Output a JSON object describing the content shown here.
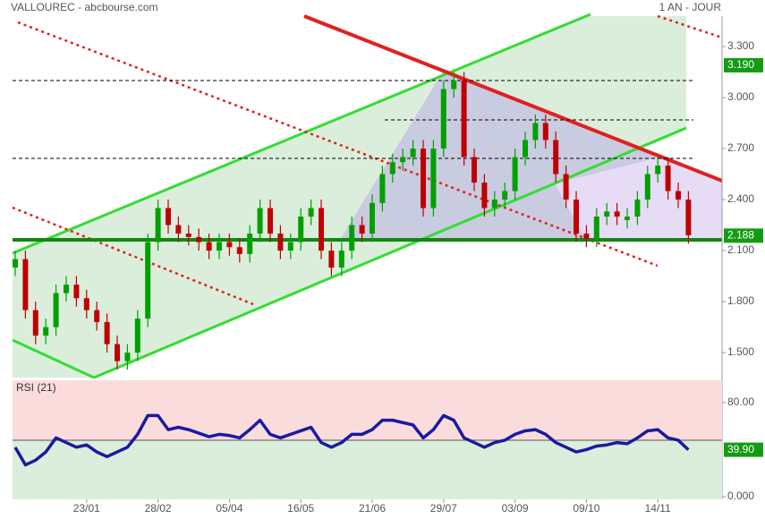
{
  "header": {
    "title": "VALLOUREC - abcbourse.com",
    "period": "1 AN - JOUR"
  },
  "chart_data": [
    {
      "type": "candlestick",
      "up_color": "#00a000",
      "down_color": "#c00000",
      "categories": [
        null,
        null,
        null,
        null,
        null,
        null,
        null,
        "23/01",
        null,
        null,
        null,
        null,
        null,
        null,
        "28/02",
        null,
        null,
        null,
        null,
        null,
        null,
        "05/04",
        null,
        null,
        null,
        null,
        null,
        null,
        "16/05",
        null,
        null,
        null,
        null,
        null,
        null,
        "21/06",
        null,
        null,
        null,
        null,
        null,
        null,
        "29/07",
        null,
        null,
        null,
        null,
        null,
        null,
        "03/09",
        null,
        null,
        null,
        null,
        null,
        null,
        "09/10",
        null,
        null,
        null,
        null,
        null,
        null,
        "14/11",
        null,
        null,
        null
      ],
      "open": [
        2.0,
        2.05,
        1.75,
        1.6,
        1.65,
        1.85,
        1.9,
        1.82,
        1.75,
        1.68,
        1.55,
        1.45,
        1.5,
        1.7,
        2.15,
        2.35,
        2.25,
        2.2,
        2.18,
        2.15,
        2.1,
        2.15,
        2.12,
        2.08,
        2.2,
        2.35,
        2.2,
        2.1,
        2.15,
        2.3,
        2.35,
        2.1,
        2.0,
        2.1,
        2.25,
        2.2,
        2.38,
        2.55,
        2.62,
        2.65,
        2.7,
        2.35,
        2.7,
        3.05,
        3.1,
        2.65,
        2.5,
        2.35,
        2.4,
        2.45,
        2.65,
        2.75,
        2.85,
        2.75,
        2.55,
        2.4,
        2.2,
        2.17,
        2.3,
        2.33,
        2.28,
        2.3,
        2.4,
        2.55,
        2.6,
        2.45,
        2.4
      ],
      "high": [
        2.1,
        2.1,
        1.8,
        1.7,
        1.9,
        1.95,
        1.95,
        1.87,
        1.8,
        1.73,
        1.6,
        1.55,
        1.75,
        2.2,
        2.4,
        2.4,
        2.3,
        2.25,
        2.23,
        2.2,
        2.2,
        2.2,
        2.17,
        2.25,
        2.4,
        2.4,
        2.25,
        2.2,
        2.35,
        2.4,
        2.4,
        2.15,
        2.15,
        2.3,
        2.3,
        2.43,
        2.6,
        2.67,
        2.7,
        2.75,
        2.75,
        2.75,
        3.1,
        3.15,
        3.15,
        2.7,
        2.55,
        2.45,
        2.5,
        2.7,
        2.8,
        2.9,
        2.9,
        2.8,
        2.6,
        2.45,
        2.25,
        2.35,
        2.38,
        2.38,
        2.35,
        2.45,
        2.6,
        2.65,
        2.65,
        2.5,
        2.45
      ],
      "low": [
        1.95,
        1.7,
        1.55,
        1.55,
        1.6,
        1.8,
        1.77,
        1.7,
        1.63,
        1.5,
        1.4,
        1.4,
        1.45,
        1.65,
        2.1,
        2.2,
        2.15,
        2.13,
        2.1,
        2.05,
        2.05,
        2.07,
        2.03,
        2.03,
        2.15,
        2.15,
        2.05,
        2.05,
        2.1,
        2.25,
        2.05,
        1.95,
        1.95,
        2.05,
        2.15,
        2.15,
        2.33,
        2.5,
        2.57,
        2.6,
        2.3,
        2.3,
        2.65,
        3.0,
        2.6,
        2.45,
        2.3,
        2.3,
        2.35,
        2.4,
        2.6,
        2.7,
        2.7,
        2.5,
        2.35,
        2.15,
        2.12,
        2.12,
        2.25,
        2.25,
        2.23,
        2.25,
        2.35,
        2.5,
        2.4,
        2.35,
        2.14
      ],
      "close": [
        2.05,
        1.75,
        1.6,
        1.65,
        1.85,
        1.9,
        1.82,
        1.75,
        1.68,
        1.55,
        1.45,
        1.5,
        1.7,
        2.15,
        2.35,
        2.25,
        2.2,
        2.18,
        2.15,
        2.1,
        2.15,
        2.12,
        2.08,
        2.2,
        2.35,
        2.2,
        2.1,
        2.15,
        2.3,
        2.35,
        2.1,
        2.0,
        2.1,
        2.25,
        2.2,
        2.38,
        2.55,
        2.62,
        2.65,
        2.7,
        2.35,
        2.7,
        3.05,
        3.1,
        2.65,
        2.5,
        2.35,
        2.4,
        2.45,
        2.65,
        2.75,
        2.85,
        2.75,
        2.55,
        2.4,
        2.2,
        2.17,
        2.3,
        2.33,
        2.3,
        2.3,
        2.4,
        2.55,
        2.6,
        2.45,
        2.4,
        2.19
      ],
      "ylim": [
        1.353,
        3.479
      ],
      "yticks": [
        {
          "value": 3.3,
          "label": "3.300"
        },
        {
          "value": 3.0,
          "label": "3.000"
        },
        {
          "value": 2.7,
          "label": "2.700"
        },
        {
          "value": 2.4,
          "label": "2.400"
        },
        {
          "value": 2.1,
          "label": "2.100"
        },
        {
          "value": 1.8,
          "label": "1.800"
        },
        {
          "value": 1.5,
          "label": "1.500"
        }
      ],
      "price_labels": [
        {
          "value": 3.19,
          "label": "3.190"
        },
        {
          "value": 2.188,
          "label": "2.188"
        }
      ]
    },
    {
      "type": "line",
      "title": "RSI (21)",
      "color": "#1a1aa0",
      "values": [
        42,
        27,
        31,
        38,
        50,
        46,
        42,
        44,
        38,
        34,
        38,
        42,
        53,
        69,
        69,
        57,
        59,
        57,
        54,
        51,
        53,
        52,
        50,
        57,
        65,
        53,
        50,
        53,
        56,
        59,
        46,
        42,
        46,
        53,
        53,
        57,
        65,
        65,
        63,
        61,
        50,
        57,
        69,
        65,
        50,
        46,
        42,
        46,
        48,
        53,
        56,
        57,
        53,
        46,
        42,
        38,
        40,
        43,
        44,
        46,
        45,
        50,
        56,
        57,
        50,
        48,
        39.9
      ],
      "value_labels": {
        "66": "39.90"
      },
      "threshold": 48,
      "ylim": [
        -2.3,
        99
      ],
      "yticks": [
        {
          "value": 80,
          "label": "80.00"
        },
        {
          "value": 0,
          "label": "0.000"
        }
      ]
    }
  ]
}
